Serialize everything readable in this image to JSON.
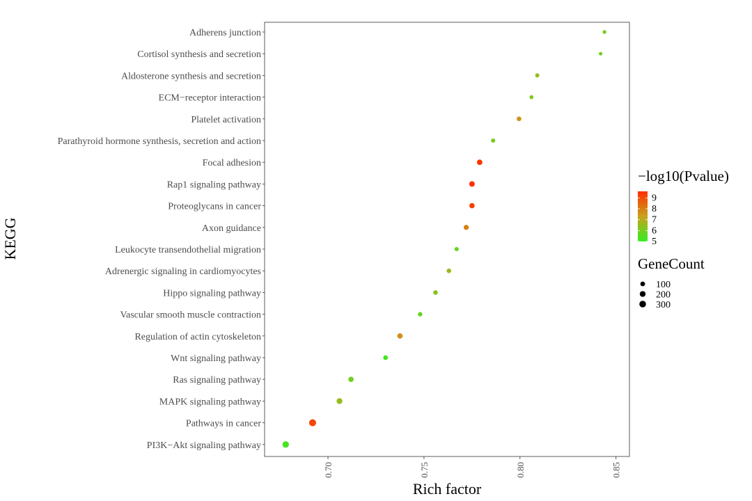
{
  "chart_data": {
    "type": "scatter",
    "xlabel": "Rich factor",
    "ylabel": "KEGG",
    "xlim": [
      0.667,
      0.857
    ],
    "xticks": [
      {
        "value": 0.7,
        "label": "0.70"
      },
      {
        "value": 0.75,
        "label": "0.75"
      },
      {
        "value": 0.8,
        "label": "0.80"
      },
      {
        "value": 0.85,
        "label": "0.85"
      }
    ],
    "grid": false,
    "legend_position": "right",
    "color_legend": {
      "title": "−log10(Pvalue)",
      "min": 5,
      "max": 9.6,
      "low_color": "#33ee22",
      "mid_color": "#c8a21a",
      "high_color": "#ff2f00",
      "ticks": [
        {
          "value": 9,
          "label": "9"
        },
        {
          "value": 8,
          "label": "8"
        },
        {
          "value": 7,
          "label": "7"
        },
        {
          "value": 6,
          "label": "6"
        },
        {
          "value": 5,
          "label": "5"
        }
      ]
    },
    "size_legend": {
      "title": "GeneCount",
      "entries": [
        {
          "value": 100,
          "label": "100"
        },
        {
          "value": 200,
          "label": "200"
        },
        {
          "value": 300,
          "label": "300"
        }
      ]
    },
    "points": [
      {
        "pathway": "Adherens junction",
        "rich_factor": 0.844,
        "neg_log10_p": 6.0,
        "gene_count": 40
      },
      {
        "pathway": "Cortisol synthesis and secretion",
        "rich_factor": 0.842,
        "neg_log10_p": 5.9,
        "gene_count": 30
      },
      {
        "pathway": "Aldosterone synthesis and secretion",
        "rich_factor": 0.809,
        "neg_log10_p": 6.5,
        "gene_count": 60
      },
      {
        "pathway": "ECM−receptor interaction",
        "rich_factor": 0.806,
        "neg_log10_p": 6.2,
        "gene_count": 50
      },
      {
        "pathway": "Platelet activation",
        "rich_factor": 0.7995,
        "neg_log10_p": 7.6,
        "gene_count": 95
      },
      {
        "pathway": "Parathyroid hormone synthesis, secretion and action",
        "rich_factor": 0.786,
        "neg_log10_p": 6.0,
        "gene_count": 65
      },
      {
        "pathway": "Focal adhesion",
        "rich_factor": 0.779,
        "neg_log10_p": 9.5,
        "gene_count": 160
      },
      {
        "pathway": "Rap1 signaling pathway",
        "rich_factor": 0.775,
        "neg_log10_p": 9.6,
        "gene_count": 170
      },
      {
        "pathway": "Proteoglycans in cancer",
        "rich_factor": 0.775,
        "neg_log10_p": 9.3,
        "gene_count": 150
      },
      {
        "pathway": "Axon guidance",
        "rich_factor": 0.772,
        "neg_log10_p": 8.0,
        "gene_count": 130
      },
      {
        "pathway": "Leukocyte transendothelial migration",
        "rich_factor": 0.767,
        "neg_log10_p": 5.8,
        "gene_count": 65
      },
      {
        "pathway": "Adrenergic signaling in cardiomyocytes",
        "rich_factor": 0.763,
        "neg_log10_p": 6.6,
        "gene_count": 90
      },
      {
        "pathway": "Hippo signaling pathway",
        "rich_factor": 0.756,
        "neg_log10_p": 6.3,
        "gene_count": 90
      },
      {
        "pathway": "Vascular smooth muscle contraction",
        "rich_factor": 0.748,
        "neg_log10_p": 5.8,
        "gene_count": 80
      },
      {
        "pathway": "Regulation of actin cytoskeleton",
        "rich_factor": 0.7375,
        "neg_log10_p": 7.7,
        "gene_count": 150
      },
      {
        "pathway": "Wnt signaling pathway",
        "rich_factor": 0.73,
        "neg_log10_p": 5.2,
        "gene_count": 100
      },
      {
        "pathway": "Ras signaling pathway",
        "rich_factor": 0.712,
        "neg_log10_p": 5.9,
        "gene_count": 150
      },
      {
        "pathway": "MAPK signaling pathway",
        "rich_factor": 0.706,
        "neg_log10_p": 6.5,
        "gene_count": 200
      },
      {
        "pathway": "Pathways in cancer",
        "rich_factor": 0.692,
        "neg_log10_p": 9.1,
        "gene_count": 350
      },
      {
        "pathway": "PI3K−Akt signaling pathway",
        "rich_factor": 0.678,
        "neg_log10_p": 5.3,
        "gene_count": 270
      }
    ]
  }
}
